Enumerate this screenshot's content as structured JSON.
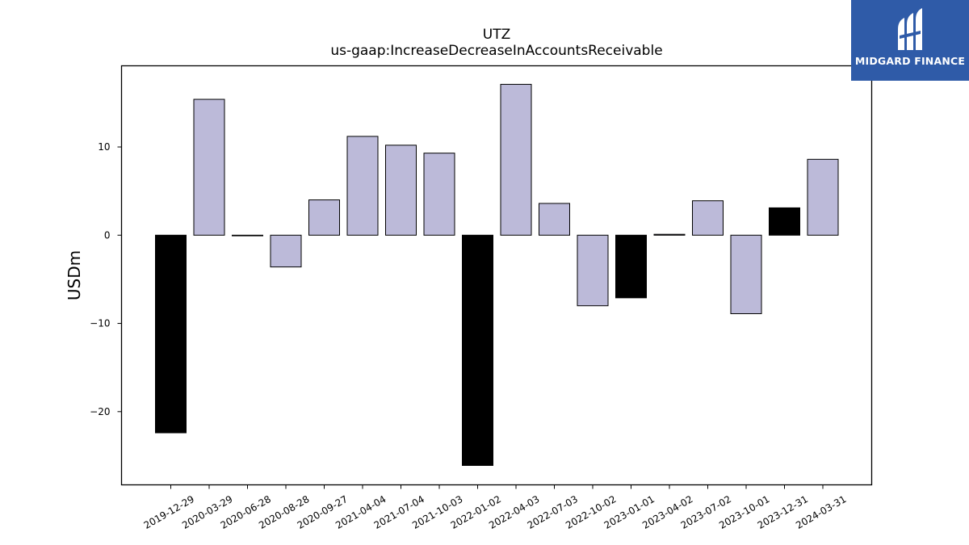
{
  "chart_data": {
    "type": "bar",
    "title": "UTZ",
    "subtitle": "us-gaap:IncreaseDecreaseInAccountsReceivable",
    "xlabel": "",
    "ylabel": "USDm",
    "ylim": [
      -28.3,
      19.2
    ],
    "yticks": [
      -20,
      -10,
      0,
      10
    ],
    "ytick_labels": [
      "−20",
      "−10",
      "0",
      "10"
    ],
    "grid": false,
    "categories": [
      "2019-12-29",
      "2020-03-29",
      "2020-06-28",
      "2020-08-28",
      "2020-09-27",
      "2021-04-04",
      "2021-07-04",
      "2021-10-03",
      "2022-01-02",
      "2022-04-03",
      "2022-07-03",
      "2022-10-02",
      "2023-01-01",
      "2023-04-02",
      "2023-07-02",
      "2023-10-01",
      "2023-12-31",
      "2024-03-31"
    ],
    "values": [
      -22.4,
      15.4,
      0.0,
      -3.6,
      4.0,
      11.2,
      10.2,
      9.3,
      -26.1,
      17.1,
      3.6,
      -8.0,
      -7.1,
      0.1,
      3.9,
      -8.9,
      3.1,
      8.6
    ],
    "highlight": [
      true,
      false,
      false,
      false,
      false,
      false,
      false,
      false,
      true,
      false,
      false,
      false,
      true,
      false,
      false,
      false,
      true,
      false
    ],
    "colors": {
      "normal": "#bcbad9",
      "highlight": "#000000",
      "edge": "#000000"
    }
  },
  "logo": {
    "text": "MIDGARD FINANCE",
    "icon": "midgard-logo-icon",
    "color": "#2f5ba8"
  }
}
